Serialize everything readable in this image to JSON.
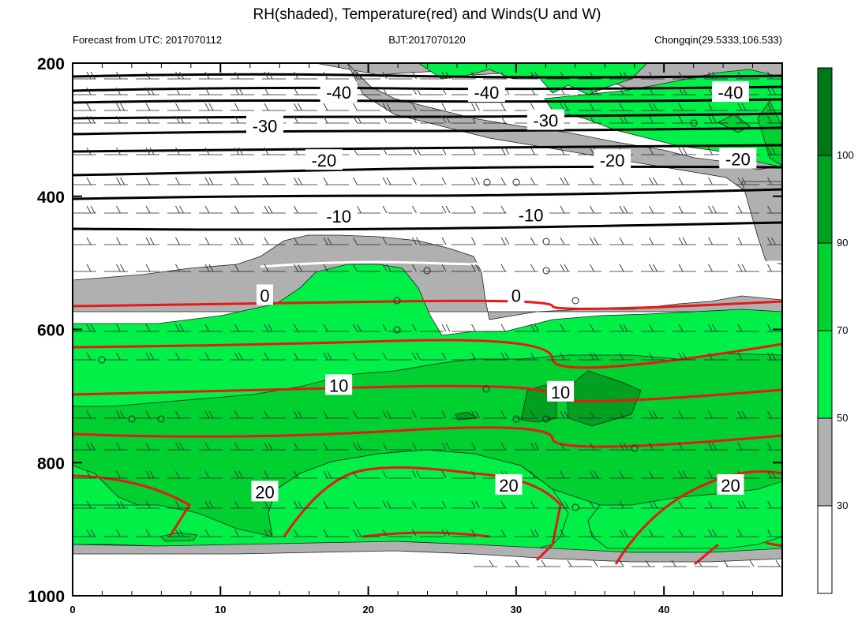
{
  "chart_data": {
    "type": "contour",
    "title": "RH(shaded), Temperature(red) and Winds(U and W)",
    "subtitle_left": "Forecast from UTC: 2017070112",
    "subtitle_center": "BJT:2017070120",
    "subtitle_right": "Chongqin(29.5333,106.533)",
    "x_ticks": [
      "0",
      "10",
      "20",
      "30",
      "40"
    ],
    "x_tick_values": [
      0,
      10,
      20,
      30,
      40
    ],
    "xlim": [
      0,
      48
    ],
    "y_ticks": [
      "200",
      "400",
      "600",
      "800",
      "1000"
    ],
    "y_tick_values": [
      200,
      400,
      600,
      800,
      1000
    ],
    "ylim": [
      200,
      1000
    ],
    "y_inverted": true,
    "colorbar": {
      "labels": [
        "30",
        "50",
        "70",
        "90",
        "100"
      ],
      "colors": [
        "#ffffff",
        "#b0b0b0",
        "#00f048",
        "#00d030",
        "#00a020",
        "#007818"
      ]
    },
    "contour_labels_black": [
      {
        "text": "-40",
        "x": 18,
        "y": 244
      },
      {
        "text": "-40",
        "x": 28,
        "y": 244
      },
      {
        "text": "-40",
        "x": 44.5,
        "y": 244
      },
      {
        "text": "-30",
        "x": 13,
        "y": 294
      },
      {
        "text": "-30",
        "x": 32,
        "y": 286
      },
      {
        "text": "-20",
        "x": 17,
        "y": 346
      },
      {
        "text": "-20",
        "x": 36.5,
        "y": 346
      },
      {
        "text": "-20",
        "x": 45,
        "y": 344
      },
      {
        "text": "-10",
        "x": 18,
        "y": 430
      },
      {
        "text": "-10",
        "x": 31,
        "y": 428
      }
    ],
    "contour_labels_white": [
      {
        "text": "0",
        "x": 13,
        "y": 549
      },
      {
        "text": "0",
        "x": 30,
        "y": 549
      }
    ],
    "contour_labels_red": [
      {
        "text": "10",
        "x": 18,
        "y": 684
      },
      {
        "text": "10",
        "x": 33,
        "y": 694
      },
      {
        "text": "20",
        "x": 13,
        "y": 844
      },
      {
        "text": "20",
        "x": 29.5,
        "y": 834
      },
      {
        "text": "20",
        "x": 44.5,
        "y": 834
      }
    ]
  }
}
